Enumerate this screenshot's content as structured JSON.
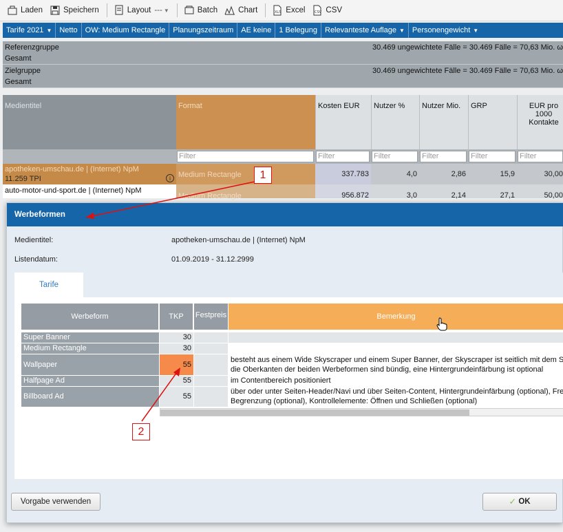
{
  "toolbar": {
    "laden": "Laden",
    "speichern": "Speichern",
    "layout": "Layout",
    "layout_value": "---",
    "batch": "Batch",
    "chart": "Chart",
    "excel": "Excel",
    "csv": "CSV"
  },
  "filterbar": {
    "items": [
      "Tarife 2021",
      "Netto",
      "OW: Medium Rectangle",
      "Planungszeitraum",
      "AE keine",
      "1 Belegung",
      "Relevanteste Auflage",
      "Personengewicht"
    ]
  },
  "groups": {
    "ref_label": "Referenzgruppe",
    "ref_sub": "Gesamt",
    "ref_stats": "30.469 ungewichtete Fälle = 30.469 Fälle = 70,63 Mio. ω",
    "ziel_label": "Zielgruppe",
    "ziel_sub": "Gesamt",
    "ziel_stats": "30.469 ungewichtete Fälle = 30.469 Fälle = 70,63 Mio. ω"
  },
  "table": {
    "headers": {
      "medientitel": "Medientitel",
      "format": "Format",
      "kosten": "Kosten EUR",
      "nutzer_pct": "Nutzer %",
      "nutzer_mio": "Nutzer Mio.",
      "grp": "GRP",
      "eur_pro": "EUR pro 1000 Kontakte"
    },
    "filter_placeholder": "Filter",
    "rows": [
      {
        "title": "apotheken-umschau.de | (Internet) NpM",
        "tpi": "11.259 TPI",
        "format": "Medium Rectangle",
        "kosten": "337.783",
        "nutzer_pct": "4,0",
        "nutzer_mio": "2,86",
        "grp": "15,9",
        "eur": "30,00"
      },
      {
        "title": "auto-motor-und-sport.de | (Internet) NpM",
        "format": "Medium Rectangle",
        "kosten": "956.872",
        "nutzer_pct": "3,0",
        "nutzer_mio": "2,14",
        "grp": "27,1",
        "eur": "50,00"
      }
    ]
  },
  "dialog": {
    "title": "Werbeformen",
    "medientitel_label": "Medientitel:",
    "medientitel_value": "apotheken-umschau.de | (Internet) NpM",
    "listendatum_label": "Listendatum:",
    "listendatum_value": "01.09.2019 - 31.12.2999",
    "tab": "Tarife",
    "columns": {
      "werbeform": "Werbeform",
      "tkp": "TKP",
      "festpreis": "Festpreis",
      "bemerkung": "Bemerkung"
    },
    "rows": [
      {
        "name": "Super Banner",
        "tkp": "30",
        "rem1": "",
        "rem2": ""
      },
      {
        "name": "Medium Rectangle",
        "tkp": "30",
        "rem1": "",
        "rem2": ""
      },
      {
        "name": "Wallpaper",
        "tkp": "55",
        "rem1": "besteht aus einem Wide Skyscraper und einem Super Banner, der Skyscraper ist seitlich mit dem Sup",
        "rem2": "die Oberkanten der beiden Werbeformen sind bündig, eine Hintergrundeinfärbung ist optional"
      },
      {
        "name": "Halfpage Ad",
        "tkp": "55",
        "rem1": "im Contentbereich positioniert",
        "rem2": ""
      },
      {
        "name": "Billboard Ad",
        "tkp": "55",
        "rem1": "über oder unter Seiten-Header/Navi und über Seiten-Content, Hintergrundeinfärbung (optional), Frequ",
        "rem2": "Begrenzung (optional), Kontrollelemente: Öffnen und Schließen (optional)"
      }
    ],
    "btn_vorgabe": "Vorgabe verwenden",
    "btn_ok": "OK"
  },
  "callouts": [
    "1",
    "2"
  ],
  "colors": {
    "accent_blue": "#1565a8",
    "orange_header": "#f5ad57",
    "highlight_cell": "#f58a4b",
    "callout_red": "#d11111"
  }
}
